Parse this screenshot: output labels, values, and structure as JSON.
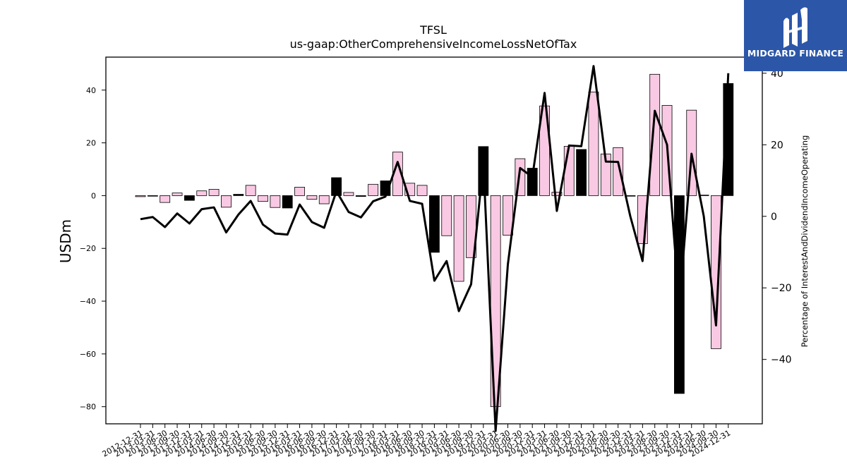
{
  "logo": {
    "text": "MIDGARD FINANCE",
    "background": "#2c57a8"
  },
  "chart_data": {
    "type": "bar",
    "title": "TFSL",
    "subtitle": "us-gaap:OtherComprehensiveIncomeLossNetOfTax",
    "ylabel": "USDm",
    "y2label": "Percentage of InterestAndDividendIncomeOperating",
    "ylim": [
      -86.5,
      52.5
    ],
    "y2lim": [
      -58,
      44.5
    ],
    "yticks": [
      40,
      20,
      0,
      -20,
      -40,
      -60,
      -80
    ],
    "y2ticks": [
      40,
      20,
      0,
      -20,
      -40
    ],
    "grid": false,
    "categories": [
      "2012-12-31",
      "2013-03-31",
      "2013-06-30",
      "2013-09-30",
      "2013-12-31",
      "2014-03-31",
      "2014-06-30",
      "2014-09-30",
      "2014-12-31",
      "2015-03-31",
      "2015-06-30",
      "2015-09-30",
      "2015-12-31",
      "2016-03-31",
      "2016-06-30",
      "2016-09-30",
      "2016-12-31",
      "2017-03-31",
      "2017-06-30",
      "2017-09-30",
      "2017-12-31",
      "2018-03-31",
      "2018-06-30",
      "2018-09-30",
      "2018-12-31",
      "2019-03-31",
      "2019-06-30",
      "2019-09-30",
      "2019-12-31",
      "2020-03-31",
      "2020-06-30",
      "2020-09-30",
      "2020-12-31",
      "2021-03-31",
      "2021-06-30",
      "2021-09-30",
      "2021-12-31",
      "2022-03-31",
      "2022-06-30",
      "2022-09-30",
      "2022-12-31",
      "2023-03-31",
      "2023-06-30",
      "2023-09-30",
      "2023-12-31",
      "2024-03-31",
      "2024-06-30",
      "2024-09-30",
      "2024-12-31"
    ],
    "series": [
      {
        "axis": "left",
        "kind": "bar",
        "colors": {
          "positive_current": "#000000",
          "other": "#f9c9e3",
          "edge": "#000000"
        },
        "values": [
          -0.4,
          -0.2,
          -2.6,
          1.0,
          -1.8,
          1.8,
          2.4,
          -4.4,
          0.5,
          3.9,
          -2.2,
          -4.5,
          -4.7,
          3.2,
          -1.4,
          -3.1,
          6.8,
          1.2,
          -0.3,
          4.3,
          5.6,
          16.5,
          4.7,
          3.9,
          -21.5,
          -15.2,
          -32.5,
          -23.5,
          18.6,
          -80.0,
          -15.0,
          14.0,
          10.4,
          34.0,
          1.3,
          18.7,
          17.5,
          39.3,
          15.8,
          18.2,
          0.0,
          -18.2,
          46.0,
          34.2,
          -75.0,
          32.4,
          0.2,
          -58.0,
          42.5
        ],
        "highlight": [
          false,
          false,
          false,
          false,
          true,
          false,
          false,
          false,
          true,
          false,
          false,
          false,
          true,
          false,
          false,
          false,
          true,
          false,
          true,
          false,
          true,
          false,
          false,
          false,
          true,
          false,
          false,
          false,
          true,
          false,
          false,
          false,
          true,
          false,
          false,
          false,
          true,
          false,
          false,
          false,
          false,
          false,
          false,
          false,
          true,
          false,
          false,
          false,
          true
        ]
      },
      {
        "axis": "right",
        "kind": "line",
        "color": "#000000",
        "values": [
          -0.8,
          -0.2,
          -3.0,
          0.8,
          -2.0,
          2.0,
          2.5,
          -4.5,
          0.5,
          4.3,
          -2.3,
          -4.8,
          -5.1,
          3.3,
          -1.6,
          -3.2,
          7.0,
          1.2,
          -0.3,
          4.2,
          5.5,
          15.2,
          4.3,
          3.5,
          -18.0,
          -12.5,
          -26.5,
          -19.0,
          15.0,
          -60.0,
          -13.5,
          13.5,
          11.0,
          34.5,
          1.5,
          19.8,
          19.6,
          42.0,
          15.3,
          15.2,
          0.0,
          -12.5,
          29.5,
          20.0,
          -25.0,
          17.5,
          0.0,
          -30.5,
          40.0
        ]
      }
    ]
  }
}
